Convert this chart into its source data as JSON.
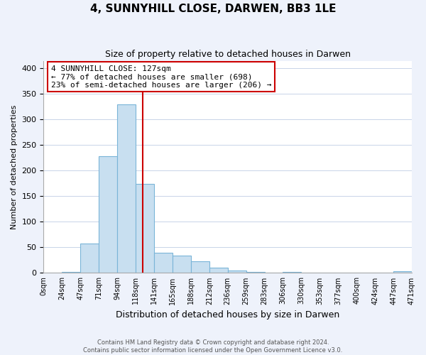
{
  "title": "4, SUNNYHILL CLOSE, DARWEN, BB3 1LE",
  "subtitle": "Size of property relative to detached houses in Darwen",
  "xlabel": "Distribution of detached houses by size in Darwen",
  "ylabel": "Number of detached properties",
  "bin_labels": [
    "0sqm",
    "24sqm",
    "47sqm",
    "71sqm",
    "94sqm",
    "118sqm",
    "141sqm",
    "165sqm",
    "188sqm",
    "212sqm",
    "236sqm",
    "259sqm",
    "283sqm",
    "306sqm",
    "330sqm",
    "353sqm",
    "377sqm",
    "400sqm",
    "424sqm",
    "447sqm",
    "471sqm"
  ],
  "bar_values": [
    0,
    2,
    57,
    229,
    330,
    174,
    39,
    34,
    23,
    10,
    5,
    2,
    0,
    2,
    0,
    0,
    0,
    0,
    0,
    3
  ],
  "bar_color": "#c8dff0",
  "bar_edge_color": "#7ab5d8",
  "vline_color": "#cc0000",
  "annotation_text": "4 SUNNYHILL CLOSE: 127sqm\n← 77% of detached houses are smaller (698)\n23% of semi-detached houses are larger (206) →",
  "annotation_box_color": "#ffffff",
  "annotation_box_edge": "#cc0000",
  "ylim": [
    0,
    415
  ],
  "yticks": [
    0,
    50,
    100,
    150,
    200,
    250,
    300,
    350,
    400
  ],
  "footer_line1": "Contains HM Land Registry data © Crown copyright and database right 2024.",
  "footer_line2": "Contains public sector information licensed under the Open Government Licence v3.0.",
  "background_color": "#eef2fb",
  "plot_bg_color": "#ffffff",
  "grid_color": "#c8d4e8"
}
